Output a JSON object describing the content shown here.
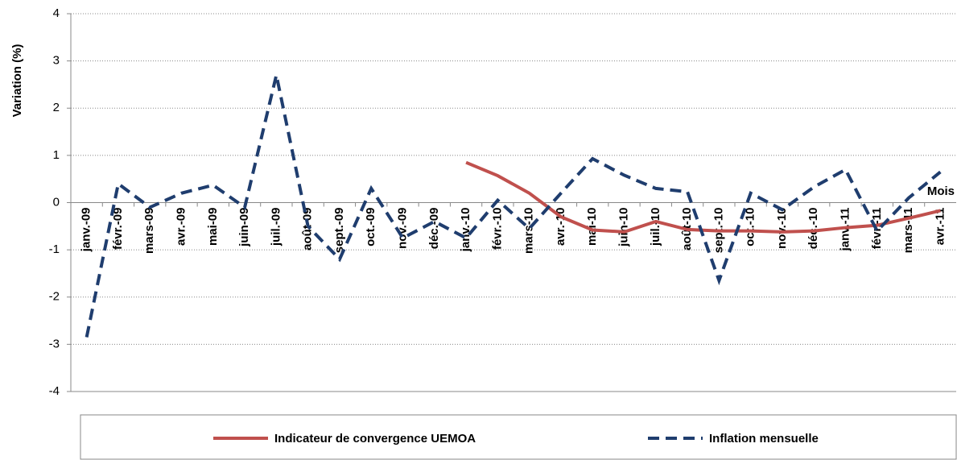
{
  "chart_data": {
    "type": "line",
    "y_label": "Variation (%)",
    "x_label": "Mois",
    "categories": [
      "janv.-09",
      "févr.-09",
      "mars-09",
      "avr.-09",
      "mai-09",
      "juin-09",
      "juil.-09",
      "août-09",
      "sept.-09",
      "oct.-09",
      "nov.-09",
      "déc.-09",
      "janv.-10",
      "févr.-10",
      "mars-10",
      "avr.-10",
      "mai-10",
      "juin-10",
      "juil.-10",
      "août-10",
      "sept.-10",
      "oct.-10",
      "nov.-10",
      "déc.-10",
      "janv.-11",
      "févr.-11",
      "mars-11",
      "avr.-11"
    ],
    "series": [
      {
        "name": "Indicateur de convergence UEMOA",
        "color": "#c0504d",
        "dash": false,
        "values": [
          null,
          null,
          null,
          null,
          null,
          null,
          null,
          null,
          null,
          null,
          null,
          null,
          0.85,
          0.57,
          0.2,
          -0.3,
          -0.58,
          -0.62,
          -0.4,
          -0.57,
          -0.6,
          -0.6,
          -0.62,
          -0.6,
          -0.53,
          -0.48,
          -0.33,
          -0.17
        ]
      },
      {
        "name": "Inflation mensuelle",
        "color": "#1f3d6e",
        "dash": true,
        "values": [
          -2.85,
          0.4,
          -0.1,
          0.2,
          0.37,
          -0.1,
          2.7,
          -0.5,
          -1.2,
          0.3,
          -0.75,
          -0.4,
          -0.75,
          0.05,
          -0.55,
          0.2,
          0.93,
          0.58,
          0.3,
          0.23,
          -1.65,
          0.2,
          -0.15,
          0.33,
          0.7,
          -0.6,
          0.1,
          0.65
        ]
      }
    ],
    "ylim": [
      -4,
      4
    ],
    "yticks": [
      -4,
      -3,
      -2,
      -1,
      0,
      1,
      2,
      3,
      4
    ],
    "grid": true
  }
}
